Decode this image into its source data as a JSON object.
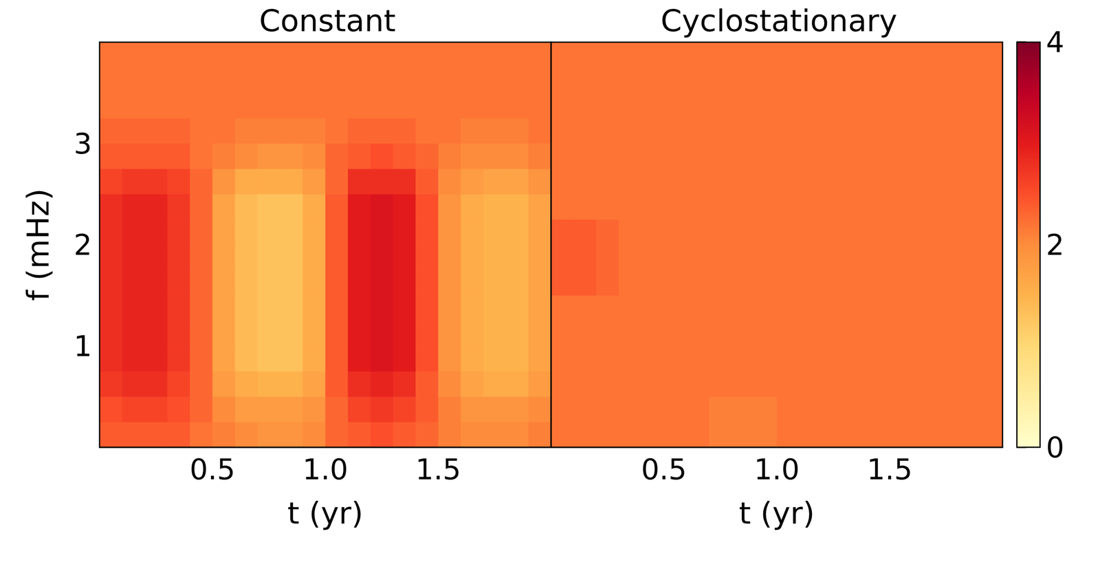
{
  "chart_data": {
    "type": "heatmap",
    "xlabel": "t (yr)",
    "ylabel": "f (mHz)",
    "xlim": [
      0,
      2
    ],
    "ylim": [
      0,
      4
    ],
    "xticks": [
      0.5,
      {
        "value": 1,
        "label": "1.0"
      },
      1.5
    ],
    "yticks": [
      1,
      2,
      3
    ],
    "grid": false,
    "colors": [
      "#ffffcc",
      "#ffeda0",
      "#fed976",
      "#feb24c",
      "#fd8d3c",
      "#fc4e2a",
      "#e31a1c",
      "#bd0026",
      "#800026"
    ],
    "colorbar_lim": [
      0,
      4
    ],
    "colorbar_ticks": [
      0,
      2,
      4
    ],
    "x_edges": [
      0,
      0.1,
      0.2,
      0.3,
      0.4,
      0.5,
      0.6,
      0.7,
      0.8,
      0.9,
      1.0,
      1.1,
      1.2,
      1.3,
      1.4,
      1.5,
      1.6,
      1.7,
      1.8,
      1.9,
      2.0
    ],
    "y_edges": [
      0,
      0.25,
      0.5,
      0.75,
      1.0,
      1.25,
      1.5,
      1.75,
      2.0,
      2.25,
      2.5,
      2.75,
      3.0,
      3.25,
      3.5,
      3.75,
      4.0
    ],
    "panels": [
      {
        "title": "Constant",
        "cells": [
          [
            2.4,
            2.4,
            2.4,
            2.4,
            2.2,
            2.1,
            2.0,
            1.9,
            1.9,
            2.0,
            2.3,
            2.4,
            2.5,
            2.4,
            2.3,
            2.1,
            2.0,
            2.0,
            2.0,
            2.1
          ],
          [
            2.5,
            2.6,
            2.6,
            2.5,
            2.3,
            2.0,
            1.8,
            1.8,
            1.8,
            1.9,
            2.3,
            2.6,
            2.7,
            2.6,
            2.4,
            2.1,
            1.9,
            1.9,
            1.9,
            2.0
          ],
          [
            2.7,
            2.8,
            2.8,
            2.6,
            2.3,
            1.8,
            1.6,
            1.5,
            1.5,
            1.7,
            2.4,
            2.8,
            2.9,
            2.8,
            2.4,
            2.0,
            1.7,
            1.6,
            1.6,
            1.8
          ],
          [
            2.8,
            2.9,
            2.9,
            2.7,
            2.3,
            1.7,
            1.4,
            1.3,
            1.3,
            1.6,
            2.4,
            3.0,
            3.1,
            3.0,
            2.5,
            1.9,
            1.6,
            1.5,
            1.5,
            1.7
          ],
          [
            2.8,
            2.9,
            2.9,
            2.7,
            2.3,
            1.7,
            1.4,
            1.3,
            1.3,
            1.6,
            2.4,
            3.0,
            3.1,
            3.0,
            2.5,
            1.9,
            1.6,
            1.5,
            1.5,
            1.7
          ],
          [
            2.8,
            2.9,
            2.9,
            2.7,
            2.3,
            1.7,
            1.4,
            1.3,
            1.3,
            1.6,
            2.4,
            3.0,
            3.1,
            3.0,
            2.5,
            1.9,
            1.6,
            1.5,
            1.5,
            1.7
          ],
          [
            2.8,
            2.9,
            2.9,
            2.7,
            2.3,
            1.7,
            1.4,
            1.3,
            1.3,
            1.6,
            2.4,
            3.0,
            3.1,
            3.0,
            2.5,
            1.9,
            1.6,
            1.5,
            1.5,
            1.7
          ],
          [
            2.8,
            2.9,
            2.9,
            2.7,
            2.3,
            1.7,
            1.4,
            1.3,
            1.3,
            1.6,
            2.4,
            3.0,
            3.1,
            3.0,
            2.5,
            1.9,
            1.6,
            1.5,
            1.5,
            1.7
          ],
          [
            2.8,
            2.9,
            2.9,
            2.7,
            2.3,
            1.7,
            1.4,
            1.3,
            1.3,
            1.6,
            2.4,
            3.0,
            3.1,
            3.0,
            2.5,
            1.9,
            1.6,
            1.5,
            1.5,
            1.7
          ],
          [
            2.8,
            2.9,
            2.9,
            2.7,
            2.3,
            1.7,
            1.4,
            1.3,
            1.3,
            1.6,
            2.4,
            3.0,
            3.1,
            3.0,
            2.5,
            1.9,
            1.6,
            1.5,
            1.5,
            1.7
          ],
          [
            2.6,
            2.7,
            2.7,
            2.6,
            2.3,
            1.9,
            1.6,
            1.6,
            1.6,
            1.8,
            2.3,
            2.8,
            2.8,
            2.8,
            2.4,
            2.0,
            1.8,
            1.7,
            1.7,
            1.9
          ],
          [
            2.4,
            2.4,
            2.4,
            2.4,
            2.2,
            2.1,
            2.0,
            1.9,
            1.9,
            2.0,
            2.3,
            2.4,
            2.5,
            2.4,
            2.3,
            2.1,
            2.0,
            2.0,
            2.0,
            2.1
          ],
          [
            2.3,
            2.3,
            2.3,
            2.3,
            2.2,
            2.2,
            2.1,
            2.1,
            2.1,
            2.1,
            2.2,
            2.3,
            2.3,
            2.3,
            2.2,
            2.2,
            2.1,
            2.1,
            2.1,
            2.2
          ],
          [
            2.2,
            2.2,
            2.2,
            2.2,
            2.2,
            2.2,
            2.2,
            2.2,
            2.2,
            2.2,
            2.2,
            2.2,
            2.2,
            2.2,
            2.2,
            2.2,
            2.2,
            2.2,
            2.2,
            2.2
          ],
          [
            2.2,
            2.2,
            2.2,
            2.2,
            2.2,
            2.2,
            2.2,
            2.2,
            2.2,
            2.2,
            2.2,
            2.2,
            2.2,
            2.2,
            2.2,
            2.2,
            2.2,
            2.2,
            2.2,
            2.2
          ],
          [
            2.2,
            2.2,
            2.2,
            2.2,
            2.2,
            2.2,
            2.2,
            2.2,
            2.2,
            2.2,
            2.2,
            2.2,
            2.2,
            2.2,
            2.2,
            2.2,
            2.2,
            2.2,
            2.2,
            2.2
          ]
        ]
      },
      {
        "title": "Cyclostationary",
        "tick_labels": "x",
        "cells": [
          [
            2.2,
            2.2,
            2.2,
            2.2,
            2.2,
            2.2,
            2.2,
            2.1,
            2.1,
            2.1,
            2.2,
            2.2,
            2.2,
            2.2,
            2.2,
            2.2,
            2.2,
            2.2,
            2.2,
            2.2
          ],
          [
            2.2,
            2.2,
            2.2,
            2.2,
            2.2,
            2.2,
            2.2,
            2.1,
            2.1,
            2.1,
            2.2,
            2.2,
            2.2,
            2.2,
            2.2,
            2.2,
            2.2,
            2.2,
            2.2,
            2.2
          ],
          [
            2.2,
            2.2,
            2.2,
            2.2,
            2.2,
            2.2,
            2.2,
            2.2,
            2.2,
            2.2,
            2.2,
            2.2,
            2.2,
            2.2,
            2.2,
            2.2,
            2.2,
            2.2,
            2.2,
            2.2
          ],
          [
            2.2,
            2.2,
            2.2,
            2.2,
            2.2,
            2.2,
            2.2,
            2.2,
            2.2,
            2.2,
            2.2,
            2.2,
            2.2,
            2.2,
            2.2,
            2.2,
            2.2,
            2.2,
            2.2,
            2.2
          ],
          [
            2.2,
            2.2,
            2.2,
            2.2,
            2.2,
            2.2,
            2.2,
            2.2,
            2.2,
            2.2,
            2.2,
            2.2,
            2.2,
            2.2,
            2.2,
            2.2,
            2.2,
            2.2,
            2.2,
            2.2
          ],
          [
            2.2,
            2.2,
            2.2,
            2.2,
            2.2,
            2.2,
            2.2,
            2.2,
            2.2,
            2.2,
            2.2,
            2.2,
            2.2,
            2.2,
            2.2,
            2.2,
            2.2,
            2.2,
            2.2,
            2.2
          ],
          [
            2.4,
            2.4,
            2.3,
            2.2,
            2.2,
            2.2,
            2.2,
            2.2,
            2.2,
            2.2,
            2.2,
            2.2,
            2.2,
            2.2,
            2.2,
            2.2,
            2.2,
            2.2,
            2.2,
            2.2
          ],
          [
            2.4,
            2.4,
            2.3,
            2.2,
            2.2,
            2.2,
            2.2,
            2.2,
            2.2,
            2.2,
            2.2,
            2.2,
            2.2,
            2.2,
            2.2,
            2.2,
            2.2,
            2.2,
            2.2,
            2.2
          ],
          [
            2.4,
            2.4,
            2.3,
            2.2,
            2.2,
            2.2,
            2.2,
            2.2,
            2.2,
            2.2,
            2.2,
            2.2,
            2.2,
            2.2,
            2.2,
            2.2,
            2.2,
            2.2,
            2.2,
            2.2
          ],
          [
            2.2,
            2.2,
            2.2,
            2.2,
            2.2,
            2.2,
            2.2,
            2.2,
            2.2,
            2.2,
            2.2,
            2.2,
            2.2,
            2.2,
            2.2,
            2.2,
            2.2,
            2.2,
            2.2,
            2.2
          ],
          [
            2.2,
            2.2,
            2.2,
            2.2,
            2.2,
            2.2,
            2.2,
            2.2,
            2.2,
            2.2,
            2.2,
            2.2,
            2.2,
            2.2,
            2.2,
            2.2,
            2.2,
            2.2,
            2.2,
            2.2
          ],
          [
            2.2,
            2.2,
            2.2,
            2.2,
            2.2,
            2.2,
            2.2,
            2.2,
            2.2,
            2.2,
            2.2,
            2.2,
            2.2,
            2.2,
            2.2,
            2.2,
            2.2,
            2.2,
            2.2,
            2.2
          ],
          [
            2.2,
            2.2,
            2.2,
            2.2,
            2.2,
            2.2,
            2.2,
            2.2,
            2.2,
            2.2,
            2.2,
            2.2,
            2.2,
            2.2,
            2.2,
            2.2,
            2.2,
            2.2,
            2.2,
            2.2
          ],
          [
            2.2,
            2.2,
            2.2,
            2.2,
            2.2,
            2.2,
            2.2,
            2.2,
            2.2,
            2.2,
            2.2,
            2.2,
            2.2,
            2.2,
            2.2,
            2.2,
            2.2,
            2.2,
            2.2,
            2.2
          ],
          [
            2.2,
            2.2,
            2.2,
            2.2,
            2.2,
            2.2,
            2.2,
            2.2,
            2.2,
            2.2,
            2.2,
            2.2,
            2.2,
            2.2,
            2.2,
            2.2,
            2.2,
            2.2,
            2.2,
            2.2
          ],
          [
            2.2,
            2.2,
            2.2,
            2.2,
            2.2,
            2.2,
            2.2,
            2.2,
            2.2,
            2.2,
            2.2,
            2.2,
            2.2,
            2.2,
            2.2,
            2.2,
            2.2,
            2.2,
            2.2,
            2.2
          ]
        ]
      }
    ]
  }
}
